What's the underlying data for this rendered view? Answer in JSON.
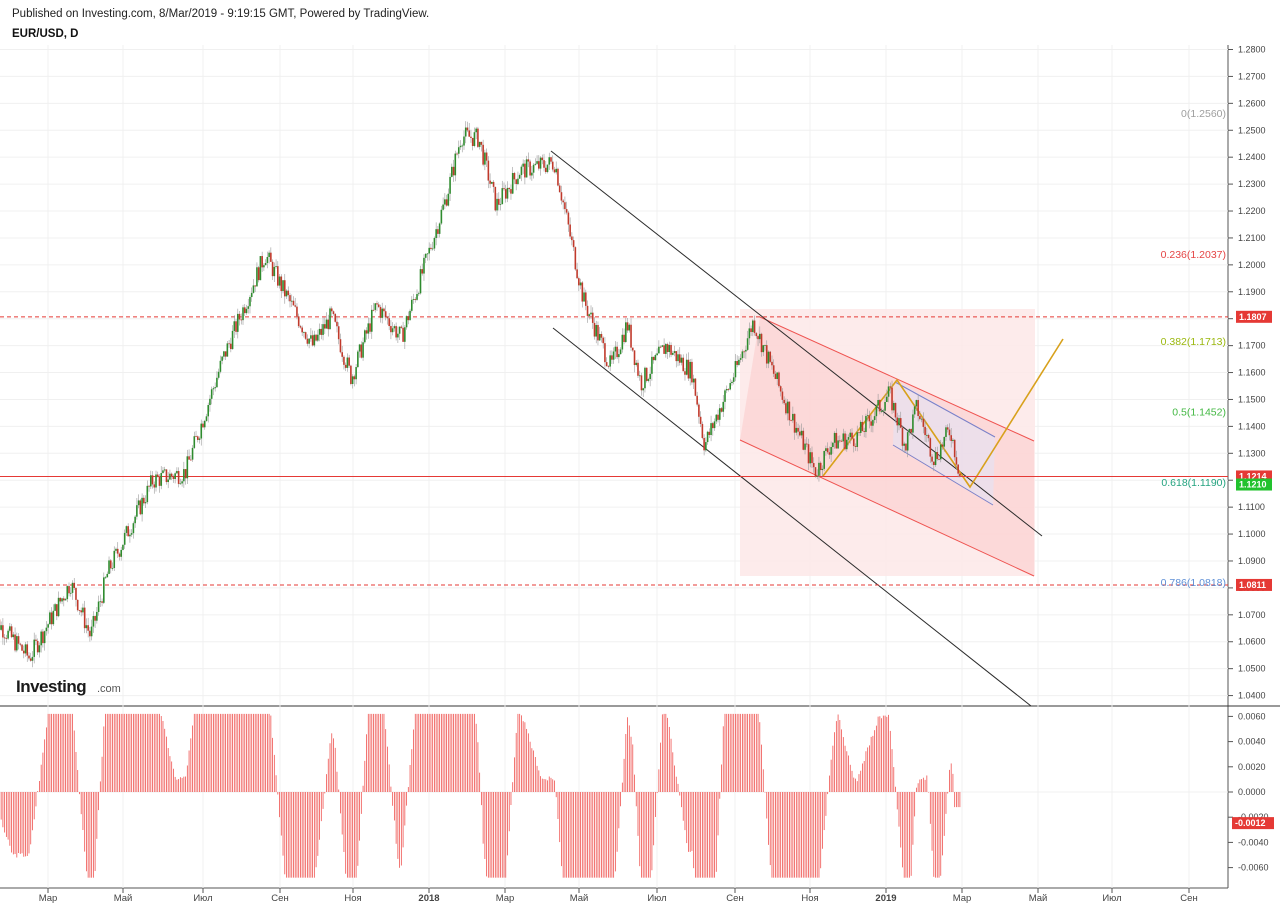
{
  "header": {
    "published": "Published on Investing.com, 8/Mar/2019 - 9:19:15 GMT, Powered by TradingView.",
    "symbol": "EUR/USD, D"
  },
  "logo": {
    "text": "Investing",
    "suffix": ".com"
  },
  "chart_data": [
    {
      "type": "candlestick",
      "symbol": "EUR/USD",
      "interval": "D",
      "ylim": [
        1.038,
        1.281
      ],
      "y_ticks": [
        "1.2800",
        "1.2700",
        "1.2600",
        "1.2500",
        "1.2400",
        "1.2300",
        "1.2200",
        "1.2100",
        "1.2000",
        "1.1900",
        "1.1800",
        "1.1700",
        "1.1600",
        "1.1500",
        "1.1400",
        "1.1300",
        "1.1200",
        "1.1100",
        "1.1000",
        "1.0900",
        "1.0800",
        "1.0700",
        "1.0600",
        "1.0500",
        "1.0400"
      ],
      "x_ticks": [
        "Мар",
        "Май",
        "Июл",
        "Сен",
        "Ноя",
        "2018",
        "Мар",
        "Май",
        "Июл",
        "Сен",
        "Ноя",
        "2019",
        "Мар",
        "Май",
        "Июл",
        "Сен"
      ],
      "price_path": [
        {
          "date": "2017-01-20",
          "close": 1.07
        },
        {
          "date": "2017-02-20",
          "close": 1.054
        },
        {
          "date": "2017-03-25",
          "close": 1.082
        },
        {
          "date": "2017-04-10",
          "close": 1.062
        },
        {
          "date": "2017-04-24",
          "close": 1.086
        },
        {
          "date": "2017-05-30",
          "close": 1.12
        },
        {
          "date": "2017-06-25",
          "close": 1.123
        },
        {
          "date": "2017-07-25",
          "close": 1.165
        },
        {
          "date": "2017-08-28",
          "close": 1.204
        },
        {
          "date": "2017-09-10",
          "close": 1.192
        },
        {
          "date": "2017-10-05",
          "close": 1.17
        },
        {
          "date": "2017-10-20",
          "close": 1.181
        },
        {
          "date": "2017-11-05",
          "close": 1.158
        },
        {
          "date": "2017-11-25",
          "close": 1.185
        },
        {
          "date": "2017-12-15",
          "close": 1.173
        },
        {
          "date": "2018-01-05",
          "close": 1.203
        },
        {
          "date": "2018-01-20",
          "close": 1.225
        },
        {
          "date": "2018-02-01",
          "close": 1.248
        },
        {
          "date": "2018-02-15",
          "close": 1.247
        },
        {
          "date": "2018-03-01",
          "close": 1.222
        },
        {
          "date": "2018-03-20",
          "close": 1.235
        },
        {
          "date": "2018-04-17",
          "close": 1.238
        },
        {
          "date": "2018-05-10",
          "close": 1.187
        },
        {
          "date": "2018-06-01",
          "close": 1.162
        },
        {
          "date": "2018-06-14",
          "close": 1.178
        },
        {
          "date": "2018-06-25",
          "close": 1.156
        },
        {
          "date": "2018-07-15",
          "close": 1.17
        },
        {
          "date": "2018-08-05",
          "close": 1.16
        },
        {
          "date": "2018-08-15",
          "close": 1.133
        },
        {
          "date": "2018-09-10",
          "close": 1.162
        },
        {
          "date": "2018-09-23",
          "close": 1.179
        },
        {
          "date": "2018-10-15",
          "close": 1.153
        },
        {
          "date": "2018-11-12",
          "close": 1.123
        },
        {
          "date": "2018-11-25",
          "close": 1.134
        },
        {
          "date": "2018-12-15",
          "close": 1.136
        },
        {
          "date": "2019-01-10",
          "close": 1.152
        },
        {
          "date": "2019-01-23",
          "close": 1.133
        },
        {
          "date": "2019-02-01",
          "close": 1.147
        },
        {
          "date": "2019-02-15",
          "close": 1.128
        },
        {
          "date": "2019-02-28",
          "close": 1.139
        },
        {
          "date": "2019-03-08",
          "close": 1.121
        }
      ],
      "fibonacci": [
        {
          "label": "0(1.2560)",
          "value": 1.256,
          "color": "#9e9e9e"
        },
        {
          "label": "0.236(1.2037)",
          "value": 1.2037,
          "color": "#e54545"
        },
        {
          "label": "0.382(1.1713)",
          "value": 1.1713,
          "color": "#9bb80f"
        },
        {
          "label": "0.5(1.1452)",
          "value": 1.1452,
          "color": "#43b843"
        },
        {
          "label": "0.618(1.1190)",
          "value": 1.119,
          "color": "#23a37f"
        },
        {
          "label": "0.786(1.0818)",
          "value": 1.0818,
          "color": "#5e8fd6"
        }
      ],
      "horizontal_levels": [
        {
          "value": 1.1807,
          "label": "1.1807",
          "style": "dashed",
          "color": "#e53935"
        },
        {
          "value": 1.1214,
          "label": "1.1214",
          "style": "solid",
          "color": "#e53935"
        },
        {
          "value": 1.0811,
          "label": "1.0811",
          "style": "dashed",
          "color": "#e53935"
        }
      ],
      "last_price": {
        "value": 1.121,
        "label": "1.1210",
        "color": "#22c22e"
      },
      "colors": {
        "up": "#2e8b2e",
        "down": "#c0392b",
        "channel_fill": "#fde0e0",
        "channel_line": "#ef5350",
        "trend": "#2a2a2a",
        "projection": "#d8a11c"
      }
    },
    {
      "type": "histogram",
      "name": "",
      "ylim": [
        -0.0072,
        0.0068
      ],
      "y_ticks": [
        "0.0060",
        "0.0040",
        "0.0020",
        "0.0000",
        "-0.0020",
        "-0.0040",
        "-0.0060"
      ],
      "last_value": {
        "value": -0.0012,
        "label": "-0.0012",
        "color": "#e53935"
      },
      "color": "#ef5350"
    }
  ]
}
